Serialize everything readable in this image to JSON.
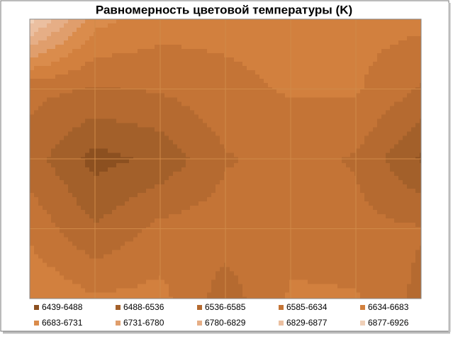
{
  "chart_data": {
    "type": "contour",
    "title": "Равномерность цветовой температуры (K)",
    "z": [
      [
        6900,
        6700,
        6660,
        6650,
        6650,
        6650,
        6650
      ],
      [
        6600,
        6580,
        6590,
        6620,
        6640,
        6640,
        6580
      ],
      [
        6560,
        6470,
        6500,
        6580,
        6600,
        6580,
        6480
      ],
      [
        6620,
        6540,
        6600,
        6610,
        6620,
        6600,
        6590
      ],
      [
        6680,
        6640,
        6650,
        6560,
        6640,
        6640,
        6570
      ]
    ],
    "levels": [
      6439,
      6488,
      6536,
      6585,
      6634,
      6683,
      6731,
      6780,
      6829,
      6877,
      6926
    ],
    "series": [
      {
        "name": "6439-6488",
        "color": "#8c5020"
      },
      {
        "name": "6488-6536",
        "color": "#a3602a"
      },
      {
        "name": "6536-6585",
        "color": "#b56a30"
      },
      {
        "name": "6585-6634",
        "color": "#c47436"
      },
      {
        "name": "6634-6683",
        "color": "#d2803e"
      },
      {
        "name": "6683-6731",
        "color": "#da8c4c"
      },
      {
        "name": "6731-6780",
        "color": "#e09e6c"
      },
      {
        "name": "6780-6829",
        "color": "#e6ae86"
      },
      {
        "name": "6829-6877",
        "color": "#ebbfa0"
      },
      {
        "name": "6877-6926",
        "color": "#f0d0b8"
      }
    ]
  }
}
